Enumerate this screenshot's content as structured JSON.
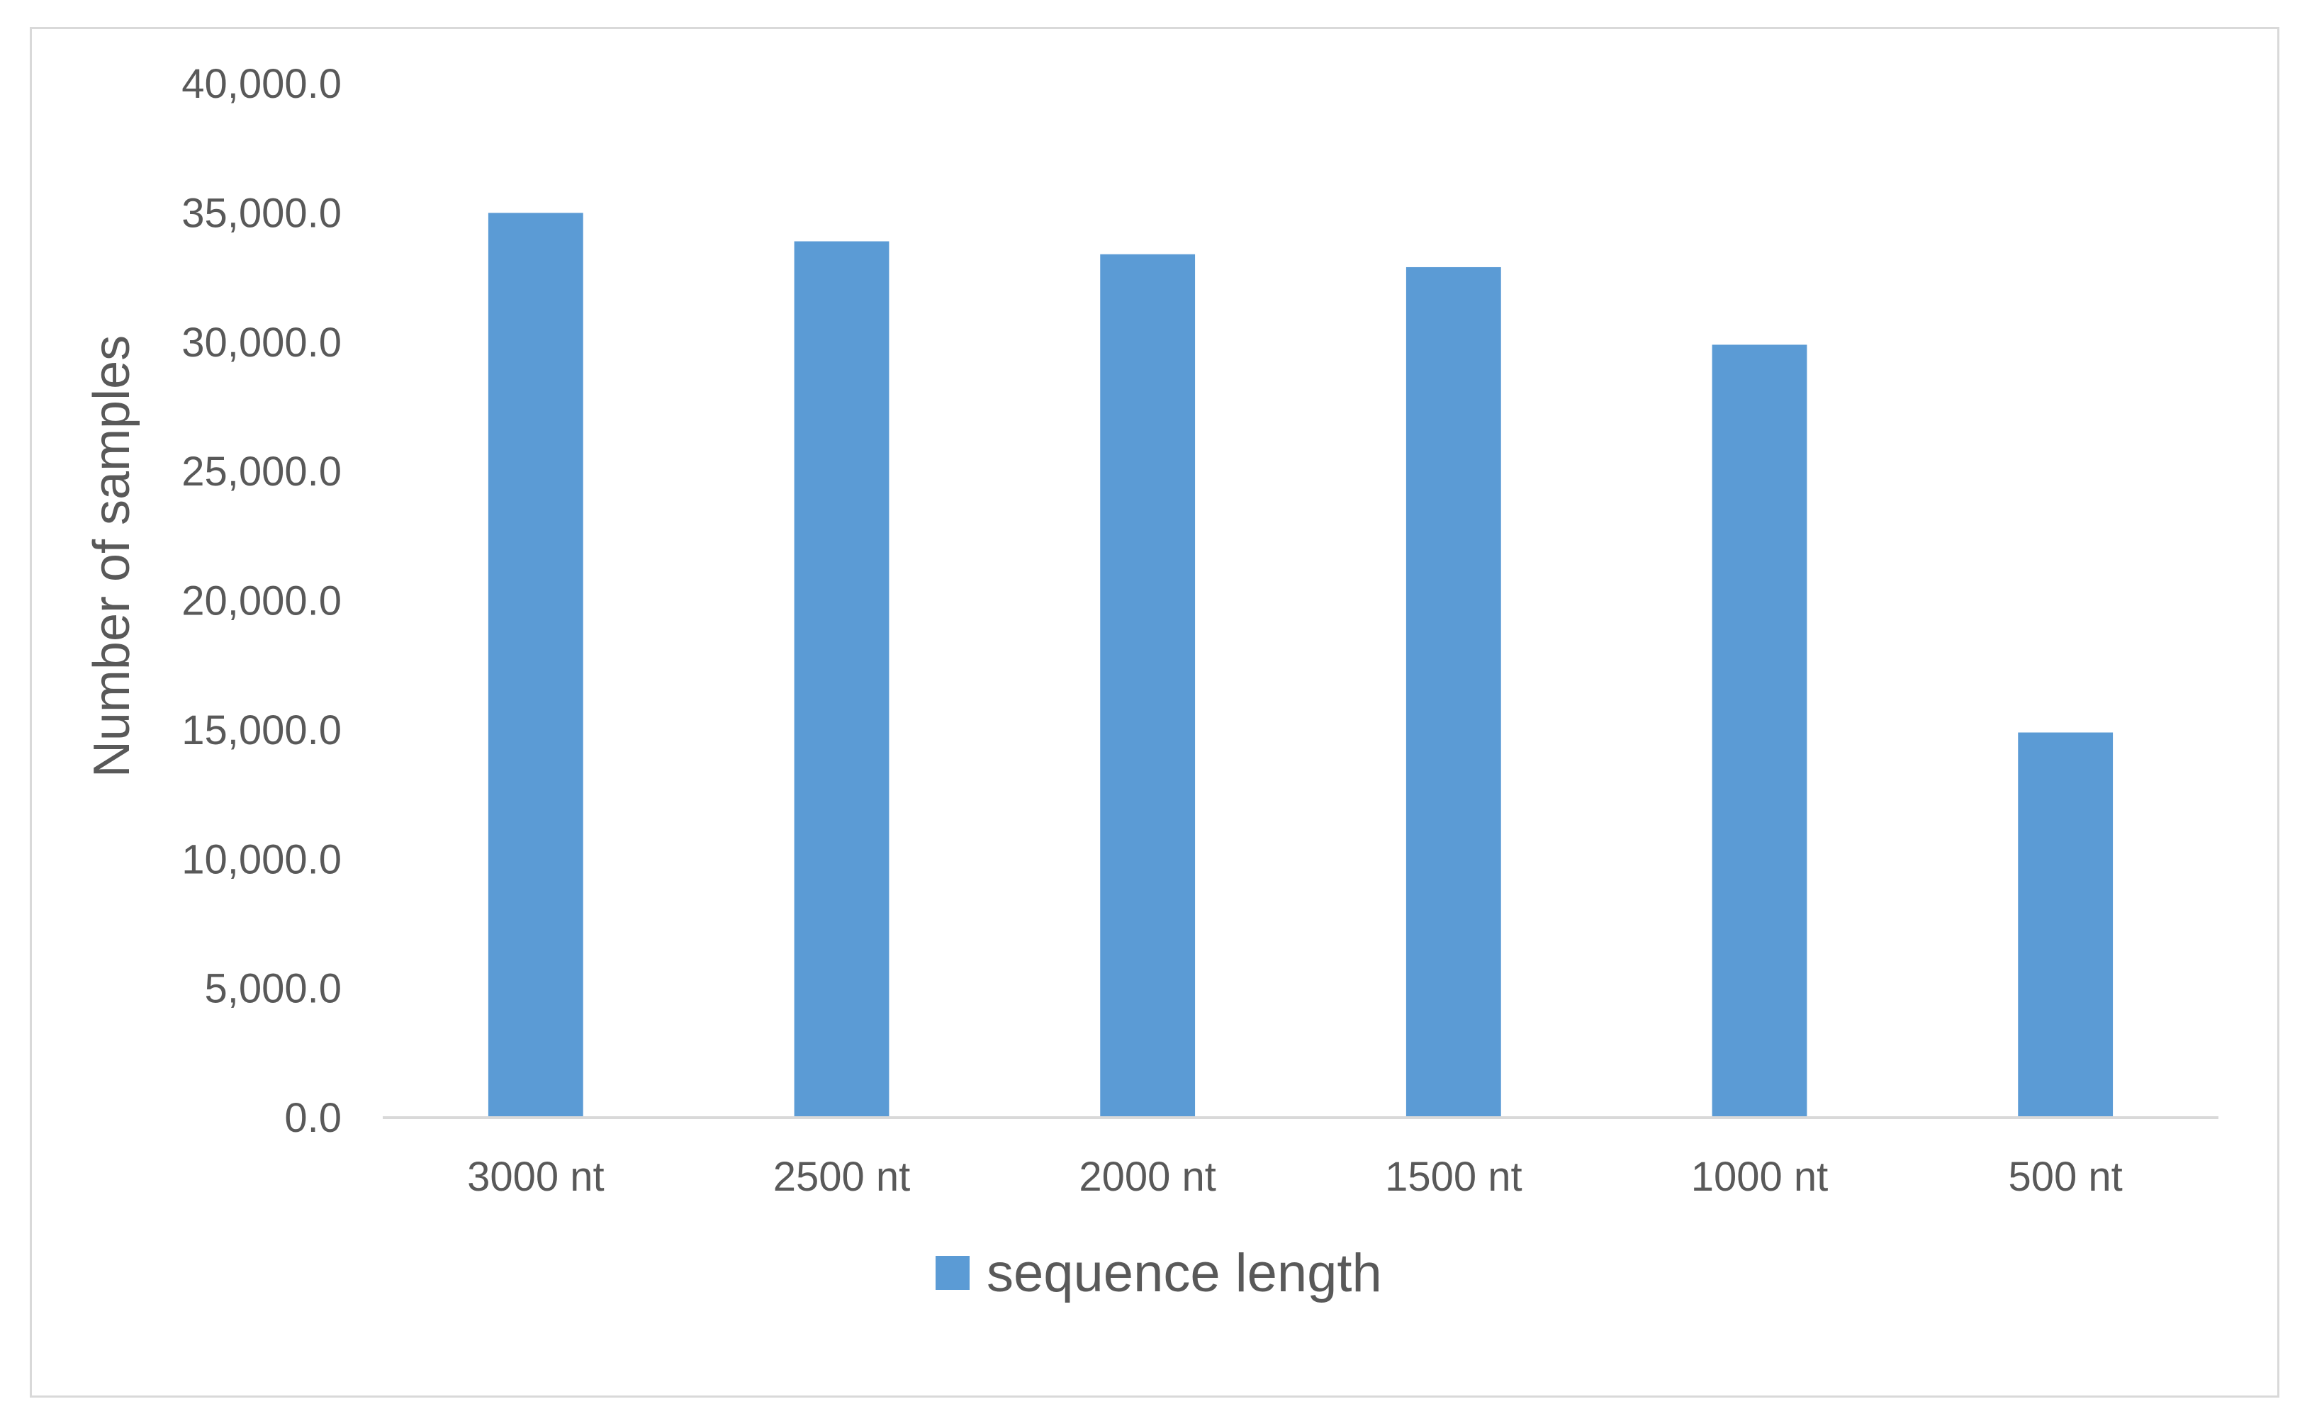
{
  "chart_data": {
    "type": "bar",
    "title": "",
    "xlabel": "",
    "ylabel": "Number of samples",
    "categories": [
      "3000 nt",
      "2500 nt",
      "2000 nt",
      "1500 nt",
      "1000 nt",
      "500 nt"
    ],
    "series": [
      {
        "name": "sequence length",
        "values": [
          35000,
          33900,
          33400,
          32900,
          29900,
          14900
        ],
        "color": "#5b9bd5"
      }
    ],
    "ylim": [
      0,
      40000
    ],
    "yticks": [
      "0.0",
      "5,000.0",
      "10,000.0",
      "15,000.0",
      "20,000.0",
      "25,000.0",
      "30,000.0",
      "35,000.0",
      "40,000.0"
    ],
    "grid": false,
    "legend_position": "bottom"
  }
}
